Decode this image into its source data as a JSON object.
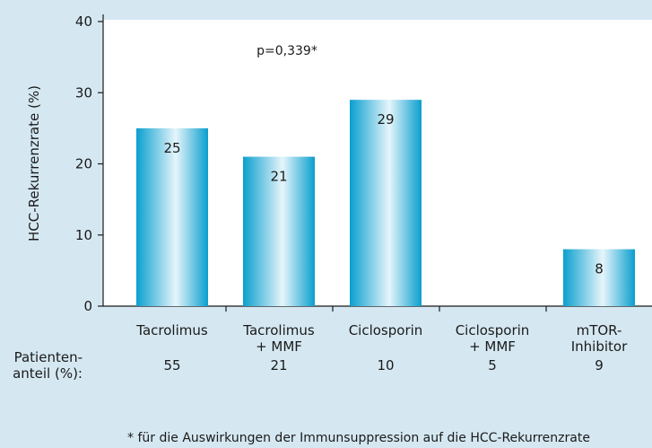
{
  "chart_data": {
    "type": "bar",
    "ylabel": "HCC-Rekurrenzrate (%)",
    "categories": [
      "Tacrolimus",
      "Tacrolimus\n+ MMF",
      "Ciclosporin",
      "Ciclosporin\n+ MMF",
      "mTOR-\nInhibitor"
    ],
    "values": [
      25,
      21,
      29,
      0,
      8
    ],
    "color": "#0a9fce",
    "ylim": [
      0,
      40
    ],
    "yticks": [
      0,
      10,
      20,
      30,
      40
    ],
    "annotation": "p=0,339*",
    "patient_share": {
      "label": "Patienten-\nanteil (%):",
      "values": [
        55,
        21,
        10,
        5,
        9
      ]
    },
    "footnote": "* für die Auswirkungen der Immunsuppression auf die HCC-Rekurrenzrate"
  }
}
